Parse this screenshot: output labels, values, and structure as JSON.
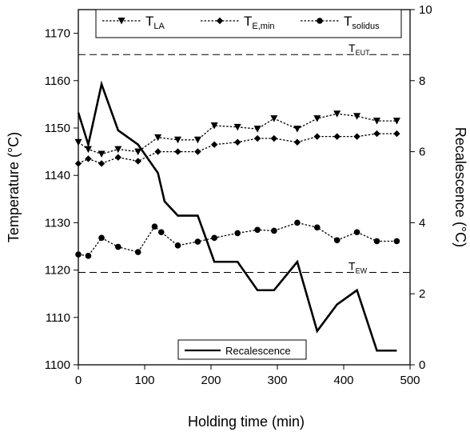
{
  "chart_data": {
    "type": "line",
    "xlabel": "Holding time (min)",
    "ylabel_left": "Temperature (°C)",
    "ylabel_right": "Recalescence (°C)",
    "xlim": [
      0,
      500
    ],
    "ylim_left": [
      1100,
      1175
    ],
    "ylim_right": [
      0,
      10
    ],
    "x_ticks": [
      0,
      100,
      200,
      300,
      400,
      500
    ],
    "y_left_ticks": [
      1100,
      1110,
      1120,
      1130,
      1140,
      1150,
      1160,
      1170
    ],
    "y_right_ticks": [
      0,
      2,
      4,
      6,
      8,
      10
    ],
    "legend_top": [
      {
        "base": "T",
        "sub": "LA",
        "marker": "triangle-down"
      },
      {
        "base": "T",
        "sub": "E,min",
        "marker": "diamond"
      },
      {
        "base": "T",
        "sub": "solidus",
        "marker": "circle"
      }
    ],
    "legend_bottom": "Recalescence",
    "series": [
      {
        "name": "TLA",
        "axis": "left",
        "marker": "triangle-down",
        "style": "dotted",
        "x": [
          0,
          15,
          35,
          60,
          90,
          120,
          150,
          180,
          205,
          240,
          270,
          295,
          330,
          360,
          390,
          420,
          450,
          480
        ],
        "y": [
          1147,
          1145.5,
          1144.5,
          1145.5,
          1145,
          1148,
          1147.5,
          1147.5,
          1150.5,
          1150.2,
          1149.8,
          1152,
          1149.8,
          1152,
          1153,
          1152.5,
          1151.5,
          1151.5
        ]
      },
      {
        "name": "TE,min",
        "axis": "left",
        "marker": "diamond",
        "style": "dotted",
        "x": [
          0,
          15,
          35,
          60,
          90,
          120,
          150,
          180,
          205,
          240,
          270,
          295,
          330,
          360,
          390,
          420,
          450,
          480
        ],
        "y": [
          1142.5,
          1143.5,
          1142.5,
          1143.8,
          1143,
          1145,
          1145,
          1145,
          1146.5,
          1147,
          1147.8,
          1147.8,
          1147,
          1148.2,
          1148.2,
          1148.2,
          1148.8,
          1148.8
        ]
      },
      {
        "name": "Tsolidus",
        "axis": "left",
        "marker": "circle",
        "style": "dotted",
        "x": [
          0,
          15,
          35,
          60,
          90,
          115,
          125,
          150,
          180,
          205,
          240,
          270,
          295,
          330,
          360,
          390,
          420,
          450,
          480
        ],
        "y": [
          1123.3,
          1123,
          1126.8,
          1124.9,
          1123.8,
          1129.2,
          1128,
          1125.2,
          1126,
          1126.8,
          1127.8,
          1128.5,
          1128.3,
          1130,
          1129,
          1126.3,
          1128,
          1126.1,
          1126.1
        ]
      },
      {
        "name": "Recalescence",
        "axis": "right",
        "marker": "none",
        "style": "solid",
        "x": [
          0,
          15,
          35,
          60,
          90,
          120,
          130,
          150,
          180,
          205,
          240,
          270,
          295,
          330,
          360,
          390,
          420,
          450,
          480
        ],
        "y": [
          7.1,
          6.2,
          7.9,
          6.6,
          6.2,
          5.4,
          4.6,
          4.2,
          4.2,
          2.9,
          2.9,
          2.1,
          2.1,
          2.9,
          0.95,
          1.7,
          2.1,
          0.4,
          0.4
        ]
      }
    ],
    "reference_lines": [
      {
        "y": 1165.5,
        "base": "T",
        "sub": "EUT"
      },
      {
        "y": 1119.5,
        "base": "T",
        "sub": "EW"
      }
    ]
  }
}
